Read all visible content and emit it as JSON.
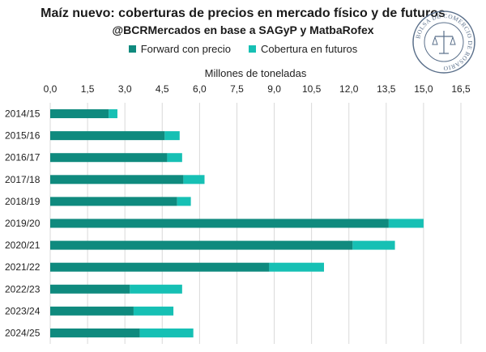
{
  "header": {
    "title": "Maíz nuevo: coberturas de precios en mercado físico y de futuros",
    "subtitle": "@BCRMercados en base a SAGyP y MatbaRofex"
  },
  "seal": {
    "text": "BOLSA DE COMERCIO DE ROSARIO",
    "color": "#5a6f8a"
  },
  "colors": {
    "forward": "#0f8a7e",
    "futuros": "#16c0b4",
    "grid": "#d9d9d9"
  },
  "chart_data": {
    "type": "bar",
    "orientation": "horizontal",
    "stacked": true,
    "title": "Maíz nuevo: coberturas de precios en mercado físico y de futuros",
    "xlabel": "Millones de toneladas",
    "ylabel": "",
    "xlim": [
      0,
      16.5
    ],
    "xticks": [
      "0,0",
      "1,5",
      "3,0",
      "4,5",
      "6,0",
      "7,5",
      "9,0",
      "10,5",
      "12,0",
      "13,5",
      "15,0",
      "16,5"
    ],
    "tick_values": [
      0,
      1.5,
      3.0,
      4.5,
      6.0,
      7.5,
      9.0,
      10.5,
      12.0,
      13.5,
      15.0,
      16.5
    ],
    "categories": [
      "2014/15",
      "2015/16",
      "2016/17",
      "2017/18",
      "2018/19",
      "2019/20",
      "2020/21",
      "2021/22",
      "2022/23",
      "2023/24",
      "2024/25"
    ],
    "series": [
      {
        "name": "Forward con precio",
        "values": [
          2.35,
          4.6,
          4.7,
          5.35,
          5.1,
          13.6,
          12.15,
          8.8,
          3.2,
          3.35,
          3.6
        ]
      },
      {
        "name": "Cobertura en futuros",
        "values": [
          0.35,
          0.6,
          0.6,
          0.85,
          0.55,
          1.4,
          1.7,
          2.2,
          2.1,
          1.6,
          2.15
        ]
      }
    ],
    "legend": "top-center"
  }
}
